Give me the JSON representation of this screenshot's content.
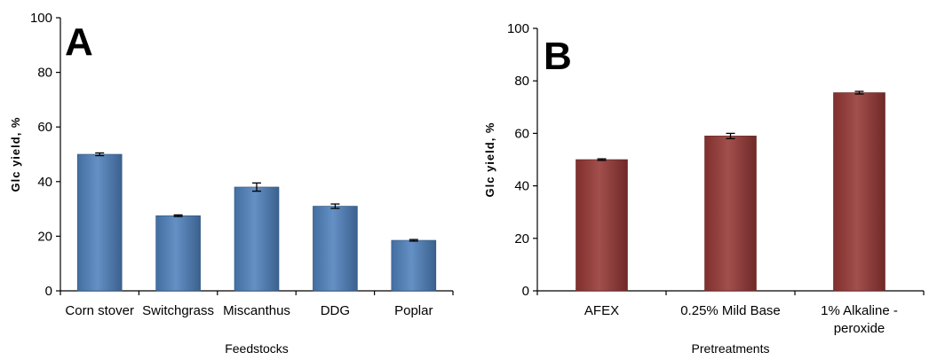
{
  "chart_data": [
    {
      "type": "bar",
      "panel_label": "A",
      "categories": [
        "Corn stover",
        "Switchgrass",
        "Miscanthus",
        "DDG",
        "Poplar"
      ],
      "values": [
        50,
        27.5,
        38,
        31,
        18.5
      ],
      "errors": [
        0.5,
        0.3,
        1.5,
        0.8,
        0.3
      ],
      "xlabel": "Feedstocks",
      "ylabel": "Glc yield, %",
      "ylim": [
        0,
        100
      ],
      "yticks": [
        "0",
        "20",
        "40",
        "60",
        "80",
        "100"
      ],
      "bar_color": "#4f81bd",
      "grid": false
    },
    {
      "type": "bar",
      "panel_label": "B",
      "categories": [
        "AFEX",
        "0.25% Mild Base",
        "1% Alkaline -\nperoxide"
      ],
      "values": [
        50,
        59,
        75.5
      ],
      "errors": [
        0.3,
        1.0,
        0.5
      ],
      "xlabel": "Pretreatments",
      "ylabel": "Glc yield, %",
      "ylim": [
        0,
        100
      ],
      "yticks": [
        "0",
        "20",
        "40",
        "60",
        "80",
        "100"
      ],
      "bar_color": "#953735",
      "grid": false
    }
  ]
}
